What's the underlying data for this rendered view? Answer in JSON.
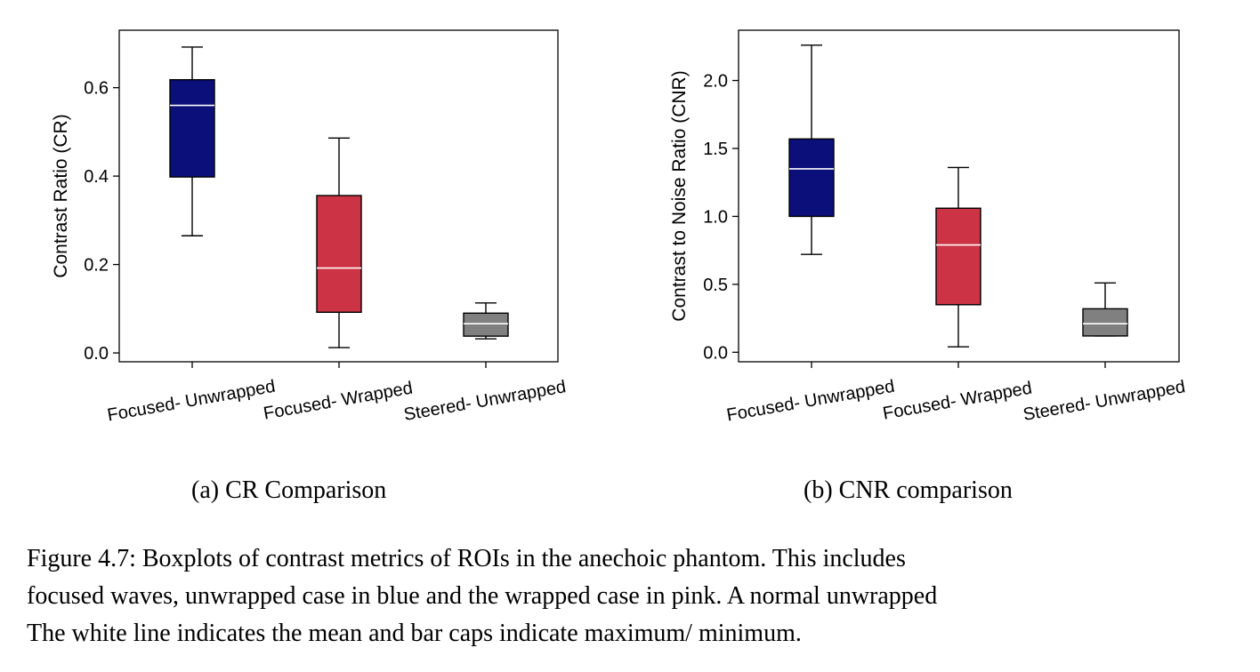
{
  "chart_data": [
    {
      "type": "boxplot",
      "ylabel": "Contrast Ratio (CR)",
      "xlabel": "",
      "ylim": [
        -0.02,
        0.73
      ],
      "yticks": [
        "0.0",
        "0.2",
        "0.4",
        "0.6"
      ],
      "grid": false,
      "categories": [
        "Focused- Unwrapped",
        "Focused- Wrapped",
        "Steered- Unwrapped"
      ],
      "boxes": [
        {
          "category": "Focused- Unwrapped",
          "min": 0.265,
          "q1": 0.398,
          "mean": 0.56,
          "q3": 0.618,
          "max": 0.692,
          "color": "#0a0f7a"
        },
        {
          "category": "Focused- Wrapped",
          "min": 0.012,
          "q1": 0.092,
          "mean": 0.192,
          "q3": 0.356,
          "max": 0.486,
          "color": "#cc3344"
        },
        {
          "category": "Steered- Unwrapped",
          "min": 0.032,
          "q1": 0.038,
          "mean": 0.066,
          "q3": 0.09,
          "max": 0.113,
          "color": "#808080"
        }
      ],
      "subcaption": "(a) CR Comparison"
    },
    {
      "type": "boxplot",
      "ylabel": "Contrast to Noise Ratio (CNR)",
      "xlabel": "",
      "ylim": [
        -0.07,
        2.37
      ],
      "yticks": [
        "0.0",
        "0.5",
        "1.0",
        "1.5",
        "2.0"
      ],
      "grid": false,
      "categories": [
        "Focused- Unwrapped",
        "Focused- Wrapped",
        "Steered- Unwrapped"
      ],
      "boxes": [
        {
          "category": "Focused- Unwrapped",
          "min": 0.72,
          "q1": 1.0,
          "mean": 1.35,
          "q3": 1.57,
          "max": 2.26,
          "color": "#0a0f7a"
        },
        {
          "category": "Focused- Wrapped",
          "min": 0.04,
          "q1": 0.35,
          "mean": 0.79,
          "q3": 1.06,
          "max": 1.36,
          "color": "#cc3344"
        },
        {
          "category": "Steered- Unwrapped",
          "min": 0.12,
          "q1": 0.12,
          "mean": 0.21,
          "q3": 0.32,
          "max": 0.51,
          "color": "#808080"
        }
      ],
      "subcaption": "(b) CNR comparison"
    }
  ],
  "caption": {
    "line1": "Figure 4.7: Boxplots of contrast metrics of ROIs in the anechoic phantom. This includes",
    "line2": "focused waves, unwrapped case in blue and the wrapped case in pink. A normal unwrapped",
    "line3": "The white line indicates the mean and bar caps indicate maximum/ minimum."
  }
}
